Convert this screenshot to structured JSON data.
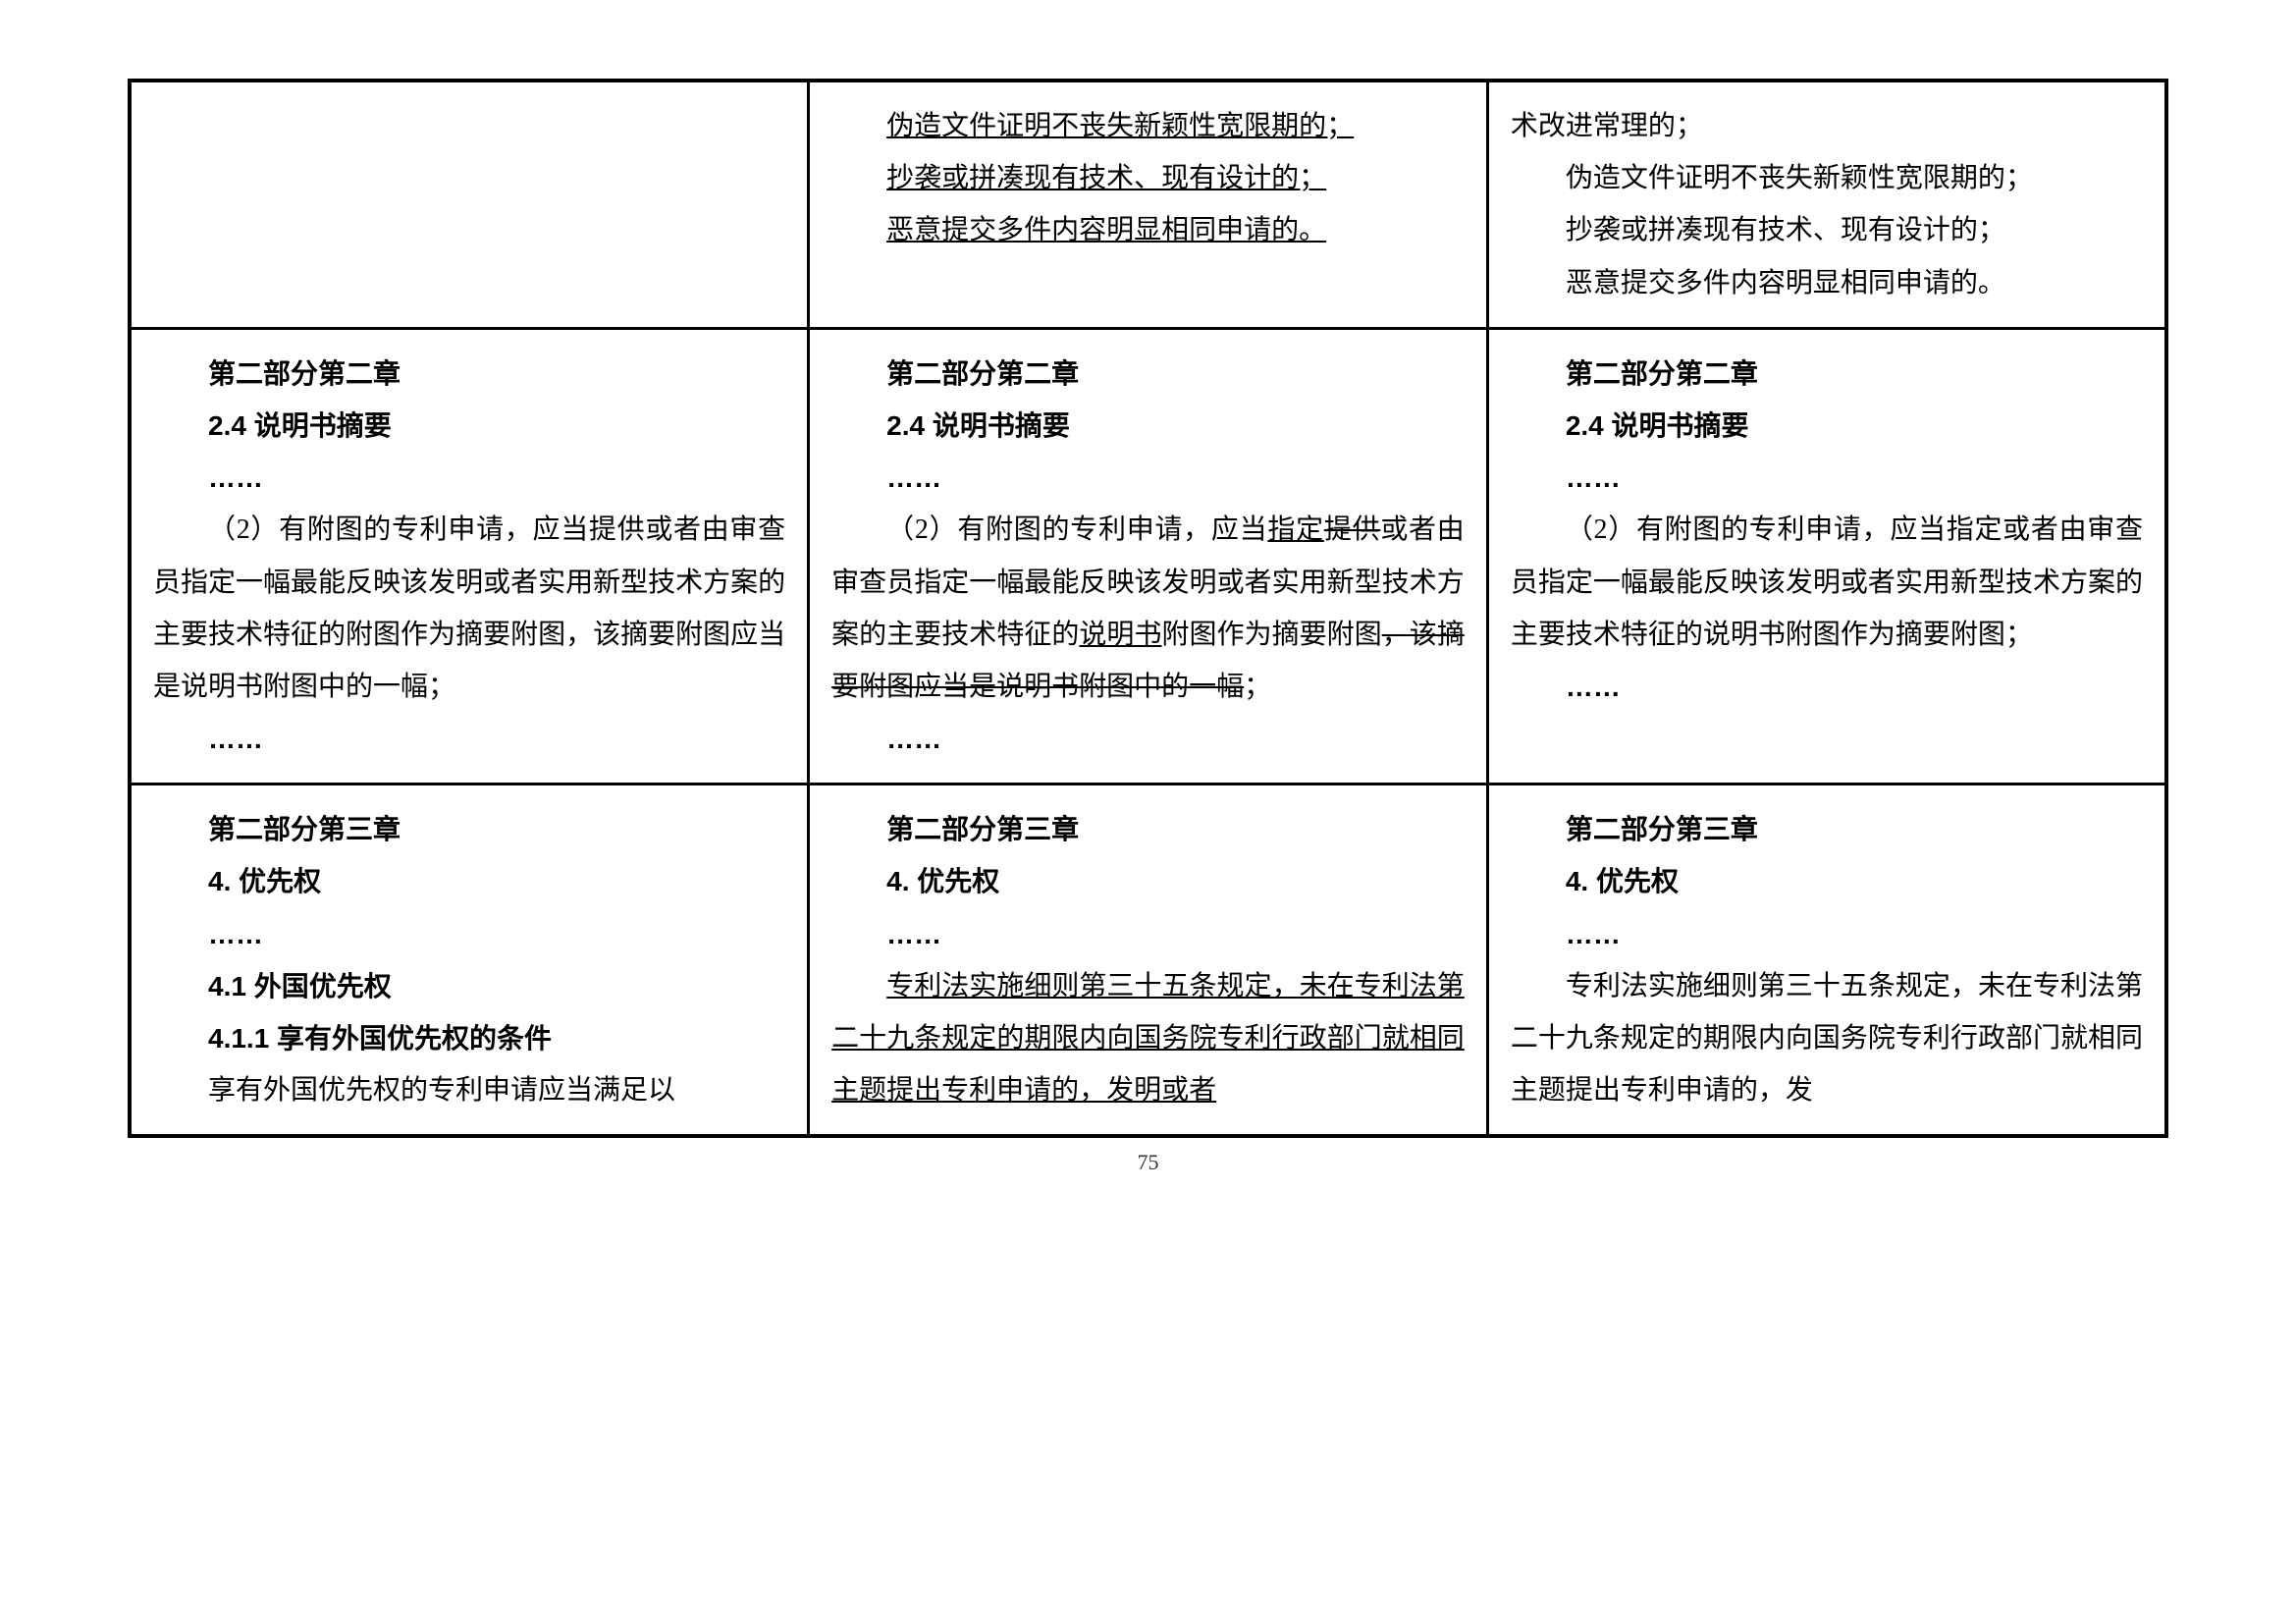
{
  "pageNumber": "75",
  "row1": {
    "col1": "",
    "col2": {
      "line1": "伪造文件证明不丧失新颖性宽限期的；",
      "line2": "抄袭或拼凑现有技术、现有设计的；",
      "line3": "恶意提交多件内容明显相同申请的。"
    },
    "col3": {
      "line0": "术改进常理的；",
      "line1": "伪造文件证明不丧失新颖性宽限期的；",
      "line2": "抄袭或拼凑现有技术、现有设计的；",
      "line3": "恶意提交多件内容明显相同申请的。"
    }
  },
  "row2": {
    "chapter": "第二部分第二章",
    "section": "2.4 说明书摘要",
    "ellipsis": "……",
    "col1_body": "（2）有附图的专利申请，应当提供或者由审查员指定一幅最能反映该发明或者实用新型技术方案的主要技术特征的附图作为摘要附图，该摘要附图应当是说明书附图中的一幅；",
    "col2_body_prefix": "（2）有附图的专利申请，应当",
    "col2_body_insert": "指定",
    "col2_body_strike1": "提供",
    "col2_body_mid": "或者由审查员指定一幅最能反映该发明或者实用新型技术方案的主要技术特征的",
    "col2_body_insert2": "说明书",
    "col2_body_mid2": "附图作为摘要附图",
    "col2_body_strike2": "，该摘要附图应当是说明书附图中的一幅",
    "col2_body_end": "；",
    "col3_body": "（2）有附图的专利申请，应当指定或者由审查员指定一幅最能反映该发明或者实用新型技术方案的主要技术特征的说明书附图作为摘要附图；"
  },
  "row3": {
    "chapter": "第二部分第三章",
    "section": "4. 优先权",
    "ellipsis": "……",
    "col1_sub1": "4.1 外国优先权",
    "col1_sub2": "4.1.1 享有外国优先权的条件",
    "col1_body": "享有外国优先权的专利申请应当满足以",
    "col2_body": "专利法实施细则第三十五条规定，未在专利法第二十九条规定的期限内向国务院专利行政部门就相同主题提出专利申请的，发明或者",
    "col3_body": "专利法实施细则第三十五条规定，未在专利法第二十九条规定的期限内向国务院专利行政部门就相同主题提出专利申请的，发"
  }
}
